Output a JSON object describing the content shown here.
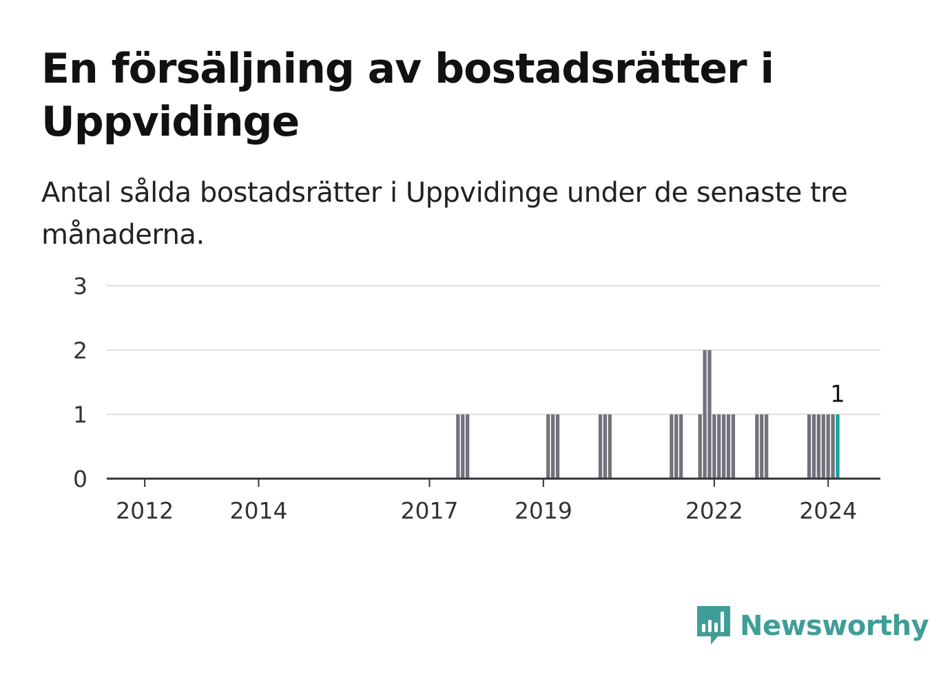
{
  "title": "En försäljning av bostadsrätter i Uppvidinge",
  "subtitle": "Antal sålda bostadsrätter i Uppvidinge under de senaste tre månaderna.",
  "brand": {
    "name": "Newsworthy",
    "color": "#3f9e97",
    "icon": "newsworthy-logo-icon"
  },
  "colors": {
    "bar": "#72727c",
    "highlight": "#14a39a",
    "grid": "#dddddd",
    "axis": "#333333"
  },
  "chart_data": {
    "type": "bar",
    "title": "En försäljning av bostadsrätter i Uppvidinge",
    "xlabel": "",
    "ylabel": "",
    "ylim": [
      0,
      3
    ],
    "yticks": [
      "0",
      "1",
      "2",
      "3"
    ],
    "xticks": [
      {
        "label": "2012",
        "date": "2012-01"
      },
      {
        "label": "2014",
        "date": "2014-01"
      },
      {
        "label": "2017",
        "date": "2017-01"
      },
      {
        "label": "2019",
        "date": "2019-01"
      },
      {
        "label": "2022",
        "date": "2022-01"
      },
      {
        "label": "2024",
        "date": "2024-01"
      }
    ],
    "grid": true,
    "legend": "none",
    "x_start": "2011-05",
    "x_end": "2024-12",
    "bars": [
      {
        "date": "2017-07",
        "value": 1
      },
      {
        "date": "2017-08",
        "value": 1
      },
      {
        "date": "2017-09",
        "value": 1
      },
      {
        "date": "2019-02",
        "value": 1
      },
      {
        "date": "2019-03",
        "value": 1
      },
      {
        "date": "2019-04",
        "value": 1
      },
      {
        "date": "2020-01",
        "value": 1
      },
      {
        "date": "2020-02",
        "value": 1
      },
      {
        "date": "2020-03",
        "value": 1
      },
      {
        "date": "2021-04",
        "value": 1
      },
      {
        "date": "2021-05",
        "value": 1
      },
      {
        "date": "2021-06",
        "value": 1
      },
      {
        "date": "2021-10",
        "value": 1
      },
      {
        "date": "2021-11",
        "value": 2
      },
      {
        "date": "2021-12",
        "value": 2
      },
      {
        "date": "2022-01",
        "value": 1
      },
      {
        "date": "2022-02",
        "value": 1
      },
      {
        "date": "2022-03",
        "value": 1
      },
      {
        "date": "2022-04",
        "value": 1
      },
      {
        "date": "2022-05",
        "value": 1
      },
      {
        "date": "2022-10",
        "value": 1
      },
      {
        "date": "2022-11",
        "value": 1
      },
      {
        "date": "2022-12",
        "value": 1
      },
      {
        "date": "2023-09",
        "value": 1
      },
      {
        "date": "2023-10",
        "value": 1
      },
      {
        "date": "2023-11",
        "value": 1
      },
      {
        "date": "2023-12",
        "value": 1
      },
      {
        "date": "2024-01",
        "value": 1
      },
      {
        "date": "2024-02",
        "value": 1
      },
      {
        "date": "2024-03",
        "value": 1,
        "highlight": true,
        "label": "1"
      }
    ]
  }
}
